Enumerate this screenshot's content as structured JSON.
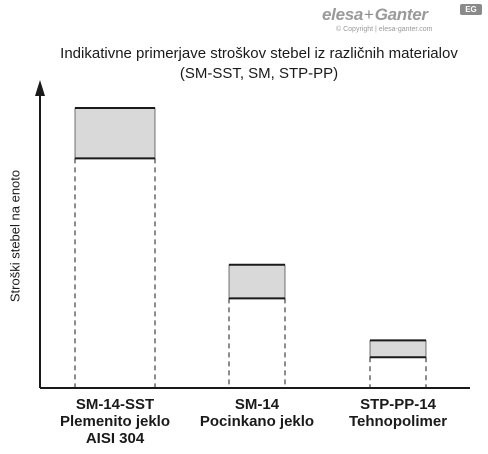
{
  "brand": {
    "logo_left": "elesa",
    "logo_plus": "+",
    "logo_right": "Ganter",
    "badge": "EG",
    "copyright": "© Copyright | elesa-ganter.com"
  },
  "chart_data": {
    "type": "bar",
    "title_line1": "Indikativne primerjave stroškov stebel iz različnih materialov",
    "title_line2": "(SM-SST, SM, STP-PP)",
    "ylabel": "Stroški stebel na enoto",
    "xlabel": "",
    "grid": false,
    "ylim": [
      0,
      100
    ],
    "categories": [
      [
        "SM-14-SST",
        "Plemenito jeklo",
        "AISI 304"
      ],
      [
        "SM-14",
        "Pocinkano jeklo"
      ],
      [
        "STP-PP-14",
        "Tehnopolimer"
      ]
    ],
    "ranges": [
      {
        "low": 82,
        "high": 100
      },
      {
        "low": 32,
        "high": 44
      },
      {
        "low": 11,
        "high": 17
      }
    ],
    "colors": {
      "range_fill": "#d9d9d9",
      "line": "#1a1a1a",
      "axis": "#1a1a1a"
    }
  }
}
